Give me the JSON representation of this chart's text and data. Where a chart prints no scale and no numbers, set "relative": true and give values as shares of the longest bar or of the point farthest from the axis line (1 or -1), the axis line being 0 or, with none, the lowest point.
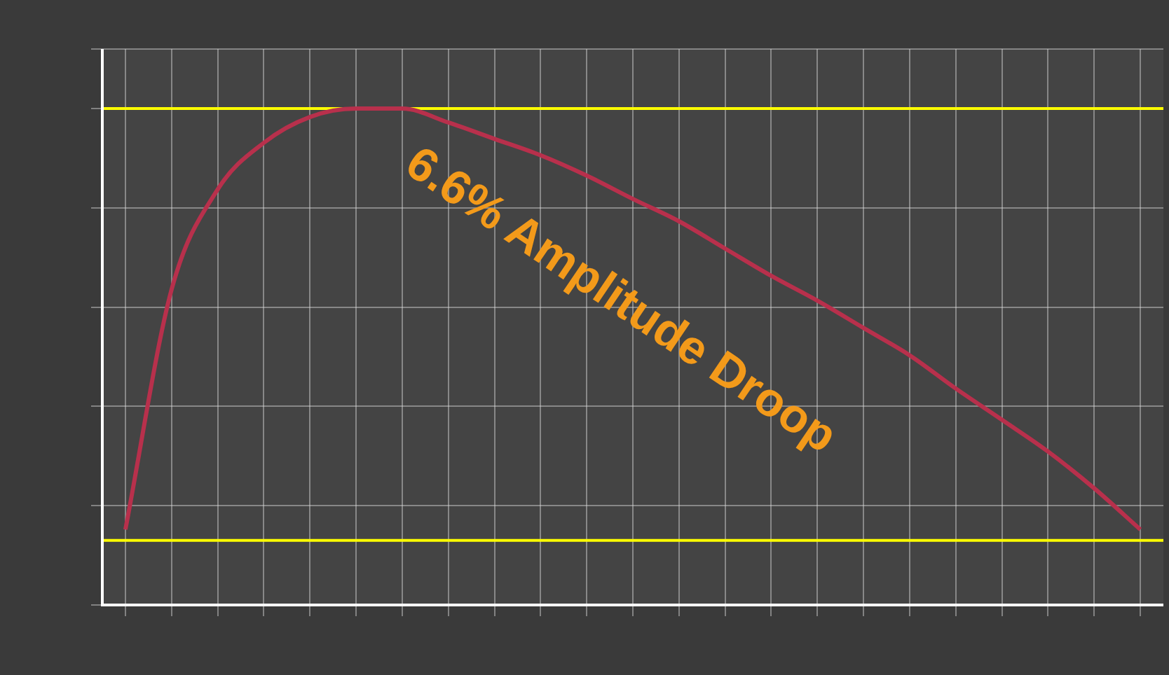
{
  "chart_data": {
    "type": "line",
    "relative": true,
    "categories": [
      null,
      null,
      null,
      null,
      null,
      null,
      null,
      null,
      null,
      null,
      null,
      null,
      null,
      null,
      null,
      null,
      null,
      null,
      null,
      null,
      null,
      null,
      null
    ],
    "series": [
      {
        "color": "#b8304c",
        "values": [
          0.152,
          0.635,
          0.837,
          0.931,
          0.983,
          1,
          1,
          0.972,
          0.939,
          0.906,
          0.865,
          0.818,
          0.773,
          0.718,
          0.663,
          0.613,
          0.558,
          0.503,
          0.436,
          0.373,
          0.309,
          0.235,
          0.152
        ]
      }
    ],
    "ref_lines": [
      {
        "axis": "y",
        "value": 1,
        "color": "#ffff00"
      },
      {
        "axis": "y",
        "value": 0.13,
        "color": "#ffff00"
      }
    ],
    "annotations": [
      "6.6% Amplitude Droop"
    ],
    "grid": true,
    "legend": false,
    "marker": "none",
    "line_style": "solid"
  }
}
